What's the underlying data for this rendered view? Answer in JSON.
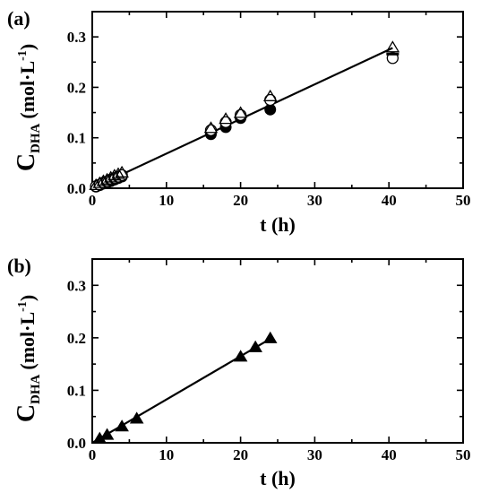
{
  "chart_data": [
    {
      "type": "scatter",
      "panel_label": "(a)",
      "xlabel": "t (h)",
      "ylabel_main": "C",
      "ylabel_sub": "DHA",
      "ylabel_unit": "(mol·L",
      "ylabel_exp": "-1",
      "ylabel_close": ")",
      "xlim": [
        0,
        50
      ],
      "ylim": [
        0,
        0.35
      ],
      "xticks": [
        "0",
        "10",
        "20",
        "30",
        "40",
        "50"
      ],
      "yticks": [
        "0.0",
        "0.1",
        "0.2",
        "0.3"
      ],
      "series": [
        {
          "marker": "filled-circle",
          "x": [
            0.5,
            1,
            1.5,
            2,
            2.5,
            3,
            3.5,
            4,
            16,
            18,
            20,
            24
          ],
          "y": [
            0.003,
            0.006,
            0.009,
            0.011,
            0.014,
            0.017,
            0.02,
            0.023,
            0.107,
            0.121,
            0.139,
            0.156
          ]
        },
        {
          "marker": "open-circle",
          "x": [
            0.5,
            1,
            1.5,
            2,
            2.5,
            3,
            3.5,
            4,
            16,
            18,
            20,
            24,
            40.5
          ],
          "y": [
            0.004,
            0.007,
            0.011,
            0.013,
            0.017,
            0.02,
            0.023,
            0.026,
            0.115,
            0.131,
            0.145,
            0.175,
            0.258
          ]
        },
        {
          "marker": "open-triangle",
          "x": [
            0.5,
            1,
            1.5,
            2,
            2.5,
            3,
            3.5,
            4,
            16,
            18,
            20,
            24,
            40.5
          ],
          "y": [
            0.005,
            0.009,
            0.013,
            0.016,
            0.02,
            0.024,
            0.027,
            0.03,
            0.118,
            0.136,
            0.148,
            0.181,
            0.278
          ]
        },
        {
          "marker": "dash",
          "x": [
            40.5
          ],
          "y": [
            0.266
          ]
        }
      ],
      "fit_line": {
        "x": [
          0,
          40.5
        ],
        "y": [
          0,
          0.278
        ]
      }
    },
    {
      "type": "scatter",
      "panel_label": "(b)",
      "xlabel": "t (h)",
      "ylabel_main": "C",
      "ylabel_sub": "DHA",
      "ylabel_unit": "(mol·L",
      "ylabel_exp": "-1",
      "ylabel_close": ")",
      "xlim": [
        0,
        50
      ],
      "ylim": [
        0,
        0.35
      ],
      "xticks": [
        "0",
        "10",
        "20",
        "30",
        "40",
        "50"
      ],
      "yticks": [
        "0.0",
        "0.1",
        "0.2",
        "0.3"
      ],
      "series": [
        {
          "marker": "filled-triangle",
          "x": [
            1,
            2,
            4,
            6,
            20,
            22,
            24
          ],
          "y": [
            0.007,
            0.014,
            0.03,
            0.045,
            0.163,
            0.181,
            0.198
          ]
        }
      ],
      "fit_line": {
        "x": [
          0,
          24
        ],
        "y": [
          0,
          0.198
        ]
      }
    }
  ]
}
